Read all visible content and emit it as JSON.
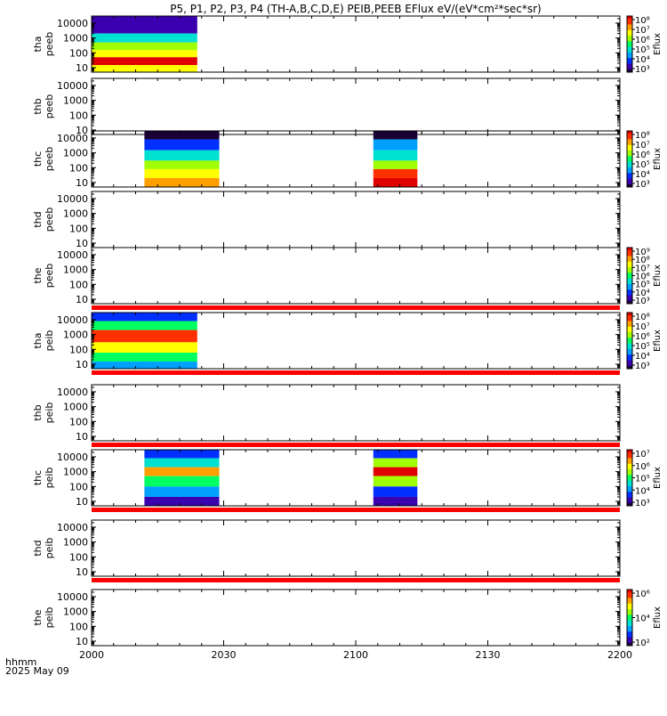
{
  "chart_data": {
    "type": "heatmap",
    "title": "P5, P1, P2, P3, P4 (TH-A,B,C,D,E) PEIB,PEEB EFlux eV/(eV*cm²*sec*sr)",
    "x_axis": {
      "range": [
        "20:00",
        "22:00"
      ],
      "tick_labels": [
        "2000",
        "2030",
        "2100",
        "2130",
        "2200"
      ],
      "label_line1": "hhmm",
      "label_line2": "2025 May 09"
    },
    "y_axis": {
      "scale": "log",
      "range_eV": [
        5,
        30000
      ],
      "tick_labels": [
        "10000",
        "1000",
        "100",
        "10"
      ]
    },
    "colorbar_label": "Eflux",
    "colormap": [
      "#1a0033",
      "#3a00b0",
      "#0030ff",
      "#00a0ff",
      "#00e0d0",
      "#00ff60",
      "#a0ff00",
      "#ffff00",
      "#ffa000",
      "#ff3000",
      "#e00000"
    ],
    "panels": [
      {
        "probe": "tha",
        "instrument": "peeb",
        "colorbar_ticks": [
          "10⁸",
          "10⁷",
          "10⁶",
          "10⁵",
          "10⁴",
          "10³"
        ],
        "colorbar_range_exp": [
          3,
          8
        ],
        "data_segments": [
          {
            "start": "20:00",
            "end": "20:24",
            "color_by_energy": [
              {
                "energy_eV": [
                  2000,
                  30000
                ],
                "log_eflux": 3.3
              },
              {
                "energy_eV": [
                  500,
                  2000
                ],
                "log_eflux": 5.2
              },
              {
                "energy_eV": [
                  150,
                  500
                ],
                "log_eflux": 5.9
              },
              {
                "energy_eV": [
                  50,
                  150
                ],
                "log_eflux": 6.6
              },
              {
                "energy_eV": [
                  15,
                  50
                ],
                "log_eflux": 7.8
              },
              {
                "energy_eV": [
                  5,
                  15
                ],
                "log_eflux": 6.4
              }
            ]
          }
        ],
        "red_band": false
      },
      {
        "probe": "thb",
        "instrument": "peeb",
        "colorbar_ticks": [],
        "data_segments": [],
        "red_band": false
      },
      {
        "probe": "thc",
        "instrument": "peeb",
        "colorbar_ticks": [
          "10⁸",
          "10⁷",
          "10⁶",
          "10⁵",
          "10⁴",
          "10³"
        ],
        "colorbar_range_exp": [
          3,
          8
        ],
        "data_segments": [
          {
            "start": "20:12",
            "end": "20:29",
            "color_by_energy": [
              {
                "energy_eV": [
                  8000,
                  30000
                ],
                "log_eflux": 3.2
              },
              {
                "energy_eV": [
                  1500,
                  8000
                ],
                "log_eflux": 4.2
              },
              {
                "energy_eV": [
                  300,
                  1500
                ],
                "log_eflux": 5.0
              },
              {
                "energy_eV": [
                  80,
                  300
                ],
                "log_eflux": 5.8
              },
              {
                "energy_eV": [
                  20,
                  80
                ],
                "log_eflux": 6.6
              },
              {
                "energy_eV": [
                  5,
                  20
                ],
                "log_eflux": 6.9
              }
            ]
          },
          {
            "start": "21:04",
            "end": "21:14",
            "color_by_energy": [
              {
                "energy_eV": [
                  8000,
                  30000
                ],
                "log_eflux": 3.2
              },
              {
                "energy_eV": [
                  1500,
                  8000
                ],
                "log_eflux": 4.3
              },
              {
                "energy_eV": [
                  300,
                  1500
                ],
                "log_eflux": 5.2
              },
              {
                "energy_eV": [
                  80,
                  300
                ],
                "log_eflux": 6.2
              },
              {
                "energy_eV": [
                  20,
                  80
                ],
                "log_eflux": 7.4
              },
              {
                "energy_eV": [
                  5,
                  20
                ],
                "log_eflux": 7.8
              }
            ]
          }
        ],
        "red_band": false
      },
      {
        "probe": "thd",
        "instrument": "peeb",
        "colorbar_ticks": [],
        "data_segments": [],
        "red_band": false
      },
      {
        "probe": "the",
        "instrument": "peeb",
        "colorbar_ticks": [
          "10⁹",
          "10⁸",
          "10⁷",
          "10⁶",
          "10⁵",
          "10⁴",
          "10³"
        ],
        "colorbar_range_exp": [
          3,
          9
        ],
        "data_segments": [],
        "red_band": true
      },
      {
        "probe": "tha",
        "instrument": "peib",
        "colorbar_ticks": [
          "10⁸",
          "10⁷",
          "10⁶",
          "10⁵",
          "10⁴",
          "10³"
        ],
        "colorbar_range_exp": [
          3,
          8
        ],
        "data_segments": [
          {
            "start": "20:00",
            "end": "20:24",
            "color_by_energy": [
              {
                "energy_eV": [
                  8000,
                  30000
                ],
                "log_eflux": 4.2
              },
              {
                "energy_eV": [
                  2000,
                  8000
                ],
                "log_eflux": 5.6
              },
              {
                "energy_eV": [
                  300,
                  2000
                ],
                "log_eflux": 7.6
              },
              {
                "energy_eV": [
                  60,
                  300
                ],
                "log_eflux": 6.6
              },
              {
                "energy_eV": [
                  15,
                  60
                ],
                "log_eflux": 5.4
              },
              {
                "energy_eV": [
                  5,
                  15
                ],
                "log_eflux": 4.5
              }
            ]
          }
        ],
        "red_band": true
      },
      {
        "probe": "thb",
        "instrument": "peib",
        "colorbar_ticks": [],
        "data_segments": [],
        "red_band": true
      },
      {
        "probe": "thc",
        "instrument": "peib",
        "colorbar_ticks": [
          "10⁷",
          "10⁶",
          "10⁵",
          "10⁴",
          "10³"
        ],
        "colorbar_range_exp": [
          3,
          7
        ],
        "data_segments": [
          {
            "start": "20:12",
            "end": "20:29",
            "color_by_energy": [
              {
                "energy_eV": [
                  8000,
                  30000
                ],
                "log_eflux": 3.6
              },
              {
                "energy_eV": [
                  2000,
                  8000
                ],
                "log_eflux": 4.6
              },
              {
                "energy_eV": [
                  500,
                  2000
                ],
                "log_eflux": 6.2
              },
              {
                "energy_eV": [
                  100,
                  500
                ],
                "log_eflux": 5.0
              },
              {
                "energy_eV": [
                  20,
                  100
                ],
                "log_eflux": 4.2
              },
              {
                "energy_eV": [
                  5,
                  20
                ],
                "log_eflux": 3.3
              }
            ]
          },
          {
            "start": "21:04",
            "end": "21:14",
            "color_by_energy": [
              {
                "energy_eV": [
                  8000,
                  30000
                ],
                "log_eflux": 3.8
              },
              {
                "energy_eV": [
                  2000,
                  8000
                ],
                "log_eflux": 5.4
              },
              {
                "energy_eV": [
                  500,
                  2000
                ],
                "log_eflux": 6.8
              },
              {
                "energy_eV": [
                  100,
                  500
                ],
                "log_eflux": 5.4
              },
              {
                "energy_eV": [
                  20,
                  100
                ],
                "log_eflux": 3.9
              },
              {
                "energy_eV": [
                  5,
                  20
                ],
                "log_eflux": 3.4
              }
            ]
          }
        ],
        "red_band": true
      },
      {
        "probe": "thd",
        "instrument": "peib",
        "colorbar_ticks": [],
        "data_segments": [],
        "red_band": true
      },
      {
        "probe": "the",
        "instrument": "peib",
        "colorbar_ticks": [
          "10⁶",
          "10⁴",
          "10²"
        ],
        "colorbar_range_exp": [
          1,
          7
        ],
        "data_segments": [],
        "red_band": false
      }
    ]
  }
}
